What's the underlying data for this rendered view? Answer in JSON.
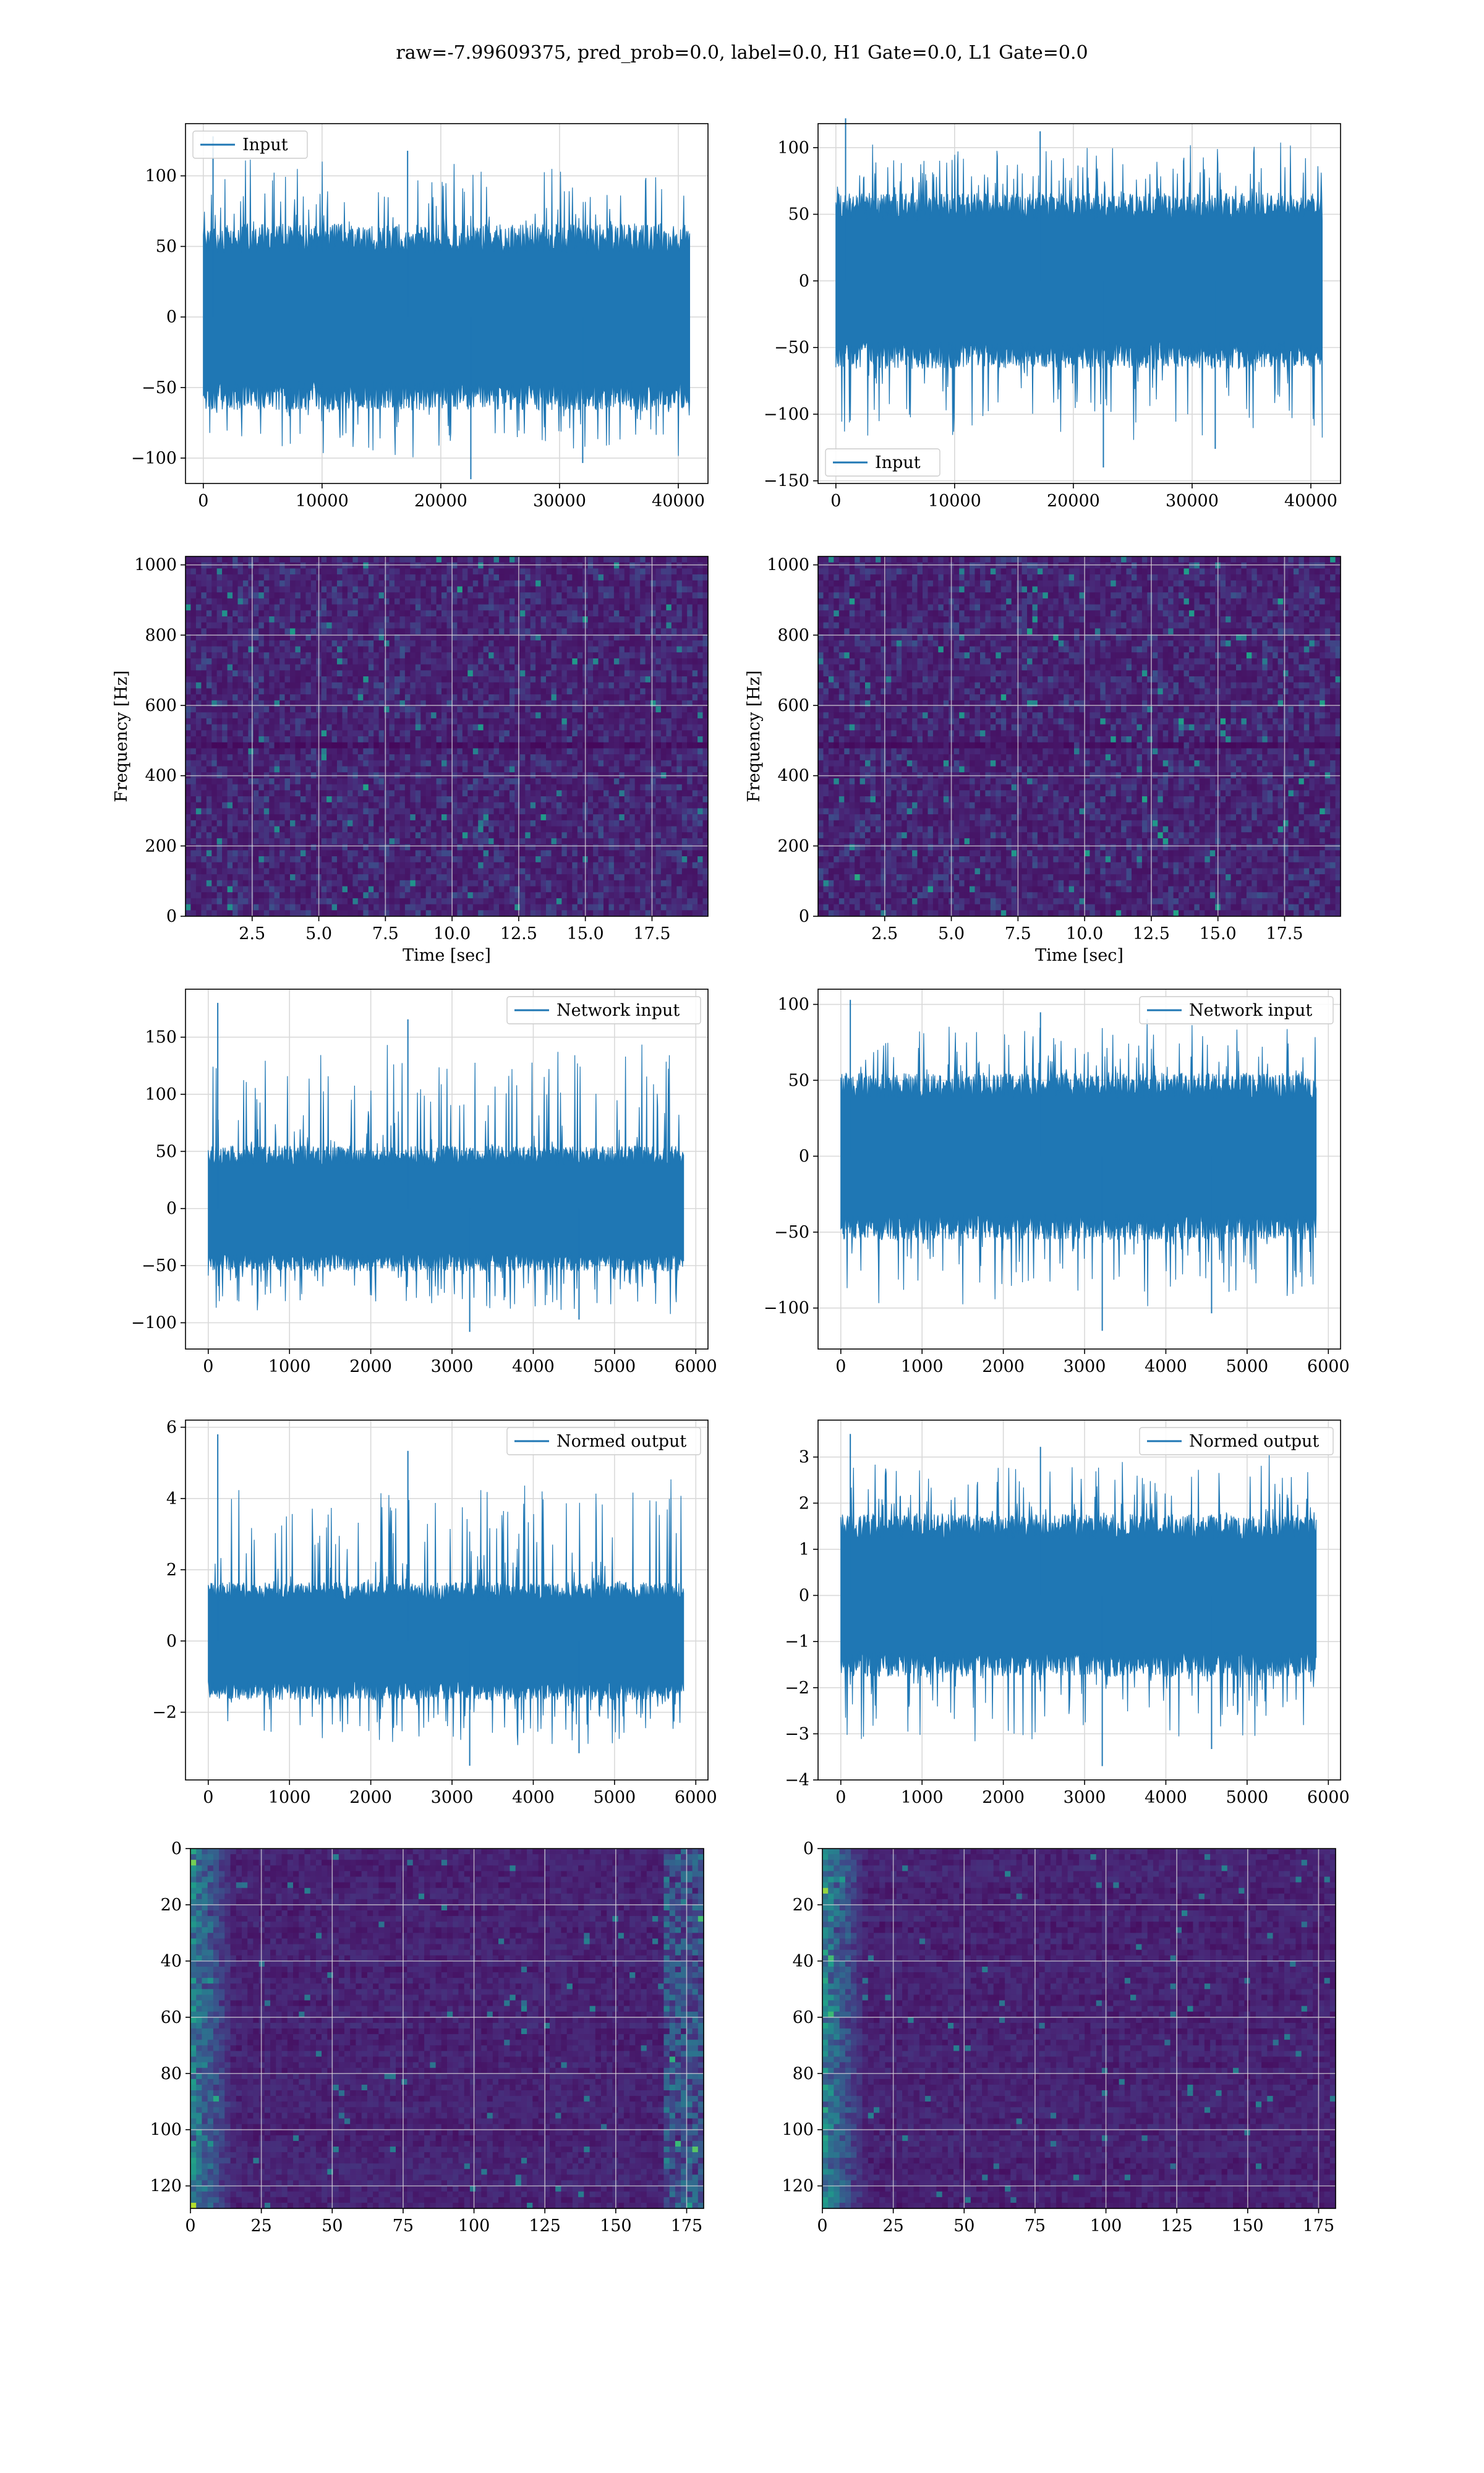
{
  "title": "raw=-7.99609375, pred_prob=0.0, label=0.0, H1 Gate=0.0, L1 Gate=0.0",
  "colors": {
    "series": "#1f77b4",
    "grid": "#d9d9d9",
    "axes": "#000000"
  },
  "chart_data": [
    {
      "id": "p1",
      "type": "line",
      "legend": "Input",
      "legend_loc": "upper left",
      "x": [
        0,
        40960
      ],
      "envelope": {
        "center": 0,
        "band": [
          -60,
          60
        ],
        "spike_range": [
          -115,
          128
        ]
      },
      "xlim": [
        -1500,
        42500
      ],
      "ylim": [
        -118,
        137
      ],
      "xticks": [
        0,
        10000,
        20000,
        30000,
        40000
      ],
      "yticks": [
        -100,
        -50,
        0,
        50,
        100
      ],
      "grid": true
    },
    {
      "id": "p2",
      "type": "line",
      "legend": "Input",
      "legend_loc": "lower left",
      "x": [
        0,
        40960
      ],
      "envelope": {
        "center": 0,
        "band": [
          -60,
          60
        ],
        "spike_range": [
          -140,
          122
        ]
      },
      "xlim": [
        -1500,
        42500
      ],
      "ylim": [
        -152,
        118
      ],
      "xticks": [
        0,
        10000,
        20000,
        30000,
        40000
      ],
      "yticks": [
        -150,
        -100,
        -50,
        0,
        50,
        100
      ],
      "grid": true
    },
    {
      "id": "p3",
      "type": "heatmap",
      "colormap": "viridis",
      "xlabel": "Time [sec]",
      "ylabel": "Frequency [Hz]",
      "xlim": [
        0,
        19.6
      ],
      "ylim": [
        0,
        1024
      ],
      "xticks": [
        2.5,
        5.0,
        7.5,
        10.0,
        12.5,
        15.0,
        17.5
      ],
      "yticks": [
        0,
        200,
        400,
        600,
        800,
        1000
      ],
      "xtick_labels": [
        "2.5",
        "5.0",
        "7.5",
        "10.0",
        "12.5",
        "15.0",
        "17.5"
      ],
      "grid": true
    },
    {
      "id": "p4",
      "type": "heatmap",
      "colormap": "viridis",
      "xlabel": "Time [sec]",
      "ylabel": "Frequency [Hz]",
      "xlim": [
        0,
        19.6
      ],
      "ylim": [
        0,
        1024
      ],
      "xticks": [
        2.5,
        5.0,
        7.5,
        10.0,
        12.5,
        15.0,
        17.5
      ],
      "yticks": [
        0,
        200,
        400,
        600,
        800,
        1000
      ],
      "xtick_labels": [
        "2.5",
        "5.0",
        "7.5",
        "10.0",
        "12.5",
        "15.0",
        "17.5"
      ],
      "grid": true
    },
    {
      "id": "p5",
      "type": "line",
      "legend": "Network input",
      "legend_loc": "upper right",
      "x": [
        0,
        5850
      ],
      "envelope": {
        "center": 0,
        "band": [
          -50,
          50
        ],
        "spike_range": [
          -108,
          180
        ]
      },
      "xlim": [
        -280,
        6150
      ],
      "ylim": [
        -123,
        192
      ],
      "xticks": [
        0,
        1000,
        2000,
        3000,
        4000,
        5000,
        6000
      ],
      "yticks": [
        -100,
        -50,
        0,
        50,
        100,
        150
      ],
      "grid": true
    },
    {
      "id": "p6",
      "type": "line",
      "legend": "Network input",
      "legend_loc": "upper right",
      "x": [
        0,
        5850
      ],
      "envelope": {
        "center": 0,
        "band": [
          -50,
          50
        ],
        "spike_range": [
          -115,
          103
        ]
      },
      "xlim": [
        -280,
        6150
      ],
      "ylim": [
        -127,
        110
      ],
      "xticks": [
        0,
        1000,
        2000,
        3000,
        4000,
        5000,
        6000
      ],
      "yticks": [
        -100,
        -50,
        0,
        50,
        100
      ],
      "grid": true
    },
    {
      "id": "p7",
      "type": "line",
      "legend": "Normed output",
      "legend_loc": "upper right",
      "x": [
        0,
        5850
      ],
      "envelope": {
        "center": 0,
        "band": [
          -1.5,
          1.5
        ],
        "spike_range": [
          -3.5,
          5.8
        ]
      },
      "xlim": [
        -280,
        6150
      ],
      "ylim": [
        -3.9,
        6.2
      ],
      "xticks": [
        0,
        1000,
        2000,
        3000,
        4000,
        5000,
        6000
      ],
      "yticks": [
        -2,
        0,
        2,
        4,
        6
      ],
      "grid": true
    },
    {
      "id": "p8",
      "type": "line",
      "legend": "Normed output",
      "legend_loc": "upper right",
      "x": [
        0,
        5850
      ],
      "envelope": {
        "center": 0,
        "band": [
          -1.6,
          1.6
        ],
        "spike_range": [
          -3.7,
          3.5
        ]
      },
      "xlim": [
        -280,
        6150
      ],
      "ylim": [
        -4,
        3.8
      ],
      "xticks": [
        0,
        1000,
        2000,
        3000,
        4000,
        5000,
        6000
      ],
      "yticks": [
        -4,
        -3,
        -2,
        -1,
        0,
        1,
        2,
        3
      ],
      "grid": true
    },
    {
      "id": "p9",
      "type": "heatmap",
      "colormap": "viridis",
      "inverted_y": true,
      "xlim": [
        0,
        181
      ],
      "ylim": [
        128,
        0
      ],
      "xticks": [
        0,
        25,
        50,
        75,
        100,
        125,
        150,
        175
      ],
      "yticks": [
        0,
        20,
        40,
        60,
        80,
        100,
        120
      ],
      "grid": true
    },
    {
      "id": "p10",
      "type": "heatmap",
      "colormap": "viridis",
      "inverted_y": true,
      "xlim": [
        0,
        181
      ],
      "ylim": [
        128,
        0
      ],
      "xticks": [
        0,
        25,
        50,
        75,
        100,
        125,
        150,
        175
      ],
      "yticks": [
        0,
        20,
        40,
        60,
        80,
        100,
        120
      ],
      "grid": true
    }
  ]
}
